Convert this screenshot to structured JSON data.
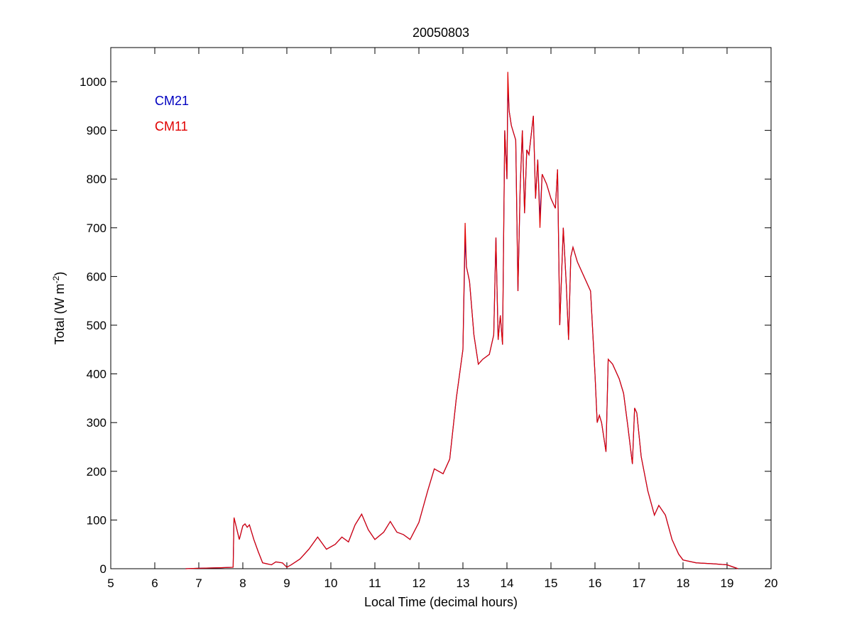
{
  "chart_data": {
    "type": "line",
    "title": "20050803",
    "xlabel": "Local Time (decimal hours)",
    "ylabel": {
      "text": "Total (W m",
      "superscript": "-2",
      "suffix": ")"
    },
    "xlim": [
      5,
      20
    ],
    "xticks": [
      5,
      6,
      7,
      8,
      9,
      10,
      11,
      12,
      13,
      14,
      15,
      16,
      17,
      18,
      19,
      20
    ],
    "ylim": [
      0,
      1070
    ],
    "yticks": [
      0,
      100,
      200,
      300,
      400,
      500,
      600,
      700,
      800,
      900,
      1000
    ],
    "grid": false,
    "legend": "upper left",
    "x": [
      6.7,
      7.0,
      7.5,
      7.78,
      7.8,
      7.88,
      7.92,
      8.0,
      8.05,
      8.1,
      8.15,
      8.25,
      8.35,
      8.45,
      8.55,
      8.65,
      8.75,
      8.9,
      9.0,
      9.1,
      9.3,
      9.5,
      9.7,
      9.9,
      10.1,
      10.25,
      10.4,
      10.55,
      10.7,
      10.85,
      11.0,
      11.2,
      11.35,
      11.5,
      11.65,
      11.8,
      12.0,
      12.2,
      12.35,
      12.55,
      12.7,
      12.85,
      13.0,
      13.05,
      13.08,
      13.15,
      13.25,
      13.35,
      13.45,
      13.6,
      13.7,
      13.75,
      13.8,
      13.85,
      13.9,
      13.95,
      14.0,
      14.02,
      14.05,
      14.1,
      14.2,
      14.25,
      14.3,
      14.35,
      14.4,
      14.45,
      14.5,
      14.6,
      14.65,
      14.7,
      14.75,
      14.8,
      14.9,
      15.0,
      15.1,
      15.15,
      15.2,
      15.28,
      15.35,
      15.4,
      15.45,
      15.5,
      15.6,
      15.8,
      15.9,
      16.0,
      16.05,
      16.1,
      16.15,
      16.25,
      16.3,
      16.4,
      16.55,
      16.65,
      16.75,
      16.85,
      16.9,
      16.95,
      17.05,
      17.2,
      17.35,
      17.45,
      17.6,
      17.75,
      17.9,
      18.0,
      18.3,
      18.7,
      19.0,
      19.25
    ],
    "series": [
      {
        "name": "CM21",
        "color": "#0000c0",
        "values": [
          0,
          1,
          2,
          3,
          105,
          75,
          60,
          88,
          92,
          85,
          90,
          60,
          35,
          12,
          10,
          8,
          14,
          12,
          3,
          8,
          20,
          40,
          65,
          40,
          50,
          65,
          55,
          90,
          112,
          80,
          60,
          75,
          97,
          75,
          70,
          60,
          95,
          160,
          205,
          195,
          225,
          350,
          450,
          680,
          620,
          590,
          480,
          420,
          430,
          440,
          480,
          680,
          470,
          520,
          460,
          900,
          800,
          990,
          940,
          910,
          880,
          570,
          780,
          900,
          730,
          860,
          850,
          930,
          760,
          840,
          720,
          810,
          790,
          760,
          740,
          820,
          500,
          700,
          580,
          470,
          640,
          660,
          630,
          590,
          570,
          400,
          300,
          315,
          300,
          240,
          430,
          420,
          390,
          360,
          290,
          215,
          330,
          320,
          230,
          160,
          110,
          130,
          110,
          60,
          30,
          18,
          12,
          10,
          8,
          0
        ]
      },
      {
        "name": "CM11",
        "color": "#e00000",
        "values": [
          0,
          1,
          2,
          3,
          105,
          75,
          60,
          88,
          92,
          85,
          90,
          60,
          35,
          12,
          10,
          8,
          14,
          12,
          3,
          8,
          20,
          40,
          65,
          40,
          50,
          65,
          55,
          90,
          112,
          80,
          60,
          75,
          97,
          75,
          70,
          60,
          95,
          160,
          205,
          195,
          225,
          350,
          450,
          710,
          620,
          590,
          480,
          420,
          430,
          440,
          480,
          680,
          470,
          520,
          460,
          900,
          800,
          1020,
          940,
          910,
          880,
          570,
          780,
          900,
          730,
          860,
          850,
          930,
          760,
          840,
          700,
          810,
          790,
          760,
          740,
          820,
          500,
          700,
          580,
          470,
          640,
          660,
          630,
          590,
          570,
          400,
          300,
          315,
          300,
          240,
          430,
          420,
          390,
          360,
          290,
          215,
          330,
          320,
          230,
          160,
          110,
          130,
          110,
          60,
          30,
          18,
          12,
          10,
          8,
          0
        ]
      }
    ]
  }
}
